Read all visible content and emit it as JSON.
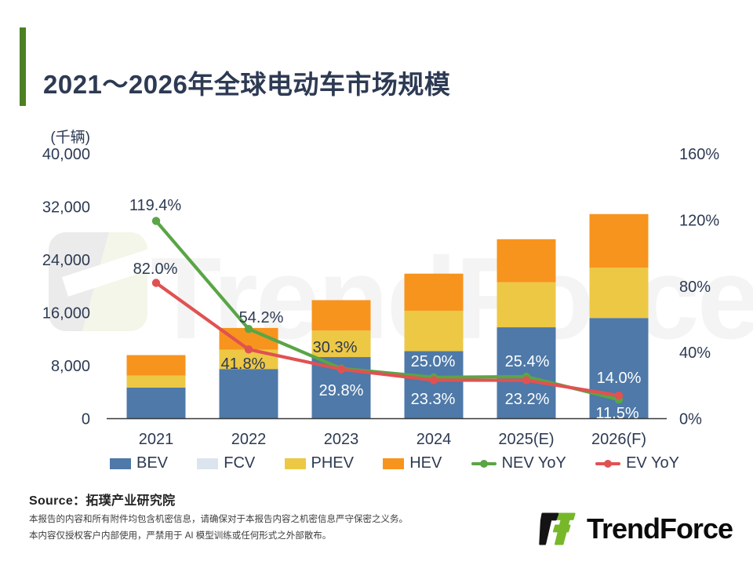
{
  "title": "2021～2026年全球电动车市场规模",
  "unit_label": "(千辆)",
  "watermark_text": "TrendForce",
  "source_line": "Source：拓璞产业研究院",
  "footer": {
    "line1": "本报告的内容和所有附件均包含机密信息，请确保对于本报告内容之机密信息严守保密之义务。",
    "line2": "本内容仅授权客户内部使用，严禁用于 AI 模型训练或任何形式之外部散布。"
  },
  "logo_wordmark": "TrendForce",
  "colors": {
    "bev": "#4E79A8",
    "fcv": "#DCE5EE",
    "phev": "#EDC845",
    "hev": "#F7941D",
    "nev": "#5AA546",
    "ev": "#E05252",
    "axis_text": "#2D3A53",
    "accent_green": "#4A8022",
    "axis_line": "#3A3A3A",
    "label_light": "#FFFFFF"
  },
  "legend": {
    "items": [
      {
        "key": "bev",
        "label": "BEV",
        "type": "box"
      },
      {
        "key": "fcv",
        "label": "FCV",
        "type": "box"
      },
      {
        "key": "phev",
        "label": "PHEV",
        "type": "box"
      },
      {
        "key": "hev",
        "label": "HEV",
        "type": "box"
      },
      {
        "key": "nev",
        "label": "NEV YoY",
        "type": "line"
      },
      {
        "key": "ev",
        "label": "EV YoY",
        "type": "line"
      }
    ]
  },
  "chart_data": {
    "type": "bar",
    "subtype": "stacked-bar-with-lines",
    "categories": [
      "2021",
      "2022",
      "2023",
      "2024",
      "2025(E)",
      "2026(F)"
    ],
    "bar_series": [
      {
        "name": "BEV",
        "color_key": "bev",
        "values": [
          4700,
          7500,
          9300,
          10200,
          13800,
          15200
        ]
      },
      {
        "name": "FCV",
        "color_key": "fcv",
        "values": [
          0,
          0,
          0,
          0,
          0,
          0
        ]
      },
      {
        "name": "PHEV",
        "color_key": "phev",
        "values": [
          1800,
          2900,
          4000,
          6100,
          6800,
          7600
        ]
      },
      {
        "name": "HEV",
        "color_key": "hev",
        "values": [
          3100,
          3300,
          4600,
          5600,
          6500,
          8100
        ]
      }
    ],
    "line_series": [
      {
        "name": "NEV YoY",
        "color_key": "nev",
        "values": [
          119.4,
          54.2,
          30.3,
          25.0,
          25.4,
          11.5
        ]
      },
      {
        "name": "EV YoY",
        "color_key": "ev",
        "values": [
          82.0,
          41.8,
          29.8,
          23.3,
          23.2,
          14.0
        ]
      }
    ],
    "left_axis": {
      "unit": "(千辆)",
      "max": 40000,
      "ticks": [
        {
          "v": 0,
          "label": "0"
        },
        {
          "v": 8000,
          "label": "8,000"
        },
        {
          "v": 16000,
          "label": "16,000"
        },
        {
          "v": 24000,
          "label": "24,000"
        },
        {
          "v": 32000,
          "label": "32,000"
        },
        {
          "v": 40000,
          "label": "40,000"
        }
      ]
    },
    "right_axis": {
      "max": 160,
      "ticks": [
        {
          "v": 0,
          "label": "0%"
        },
        {
          "v": 40,
          "label": "40%"
        },
        {
          "v": 80,
          "label": "80%"
        },
        {
          "v": 120,
          "label": "120%"
        },
        {
          "v": 160,
          "label": "160%"
        }
      ]
    },
    "grid": false,
    "legend_position": "bottom"
  }
}
